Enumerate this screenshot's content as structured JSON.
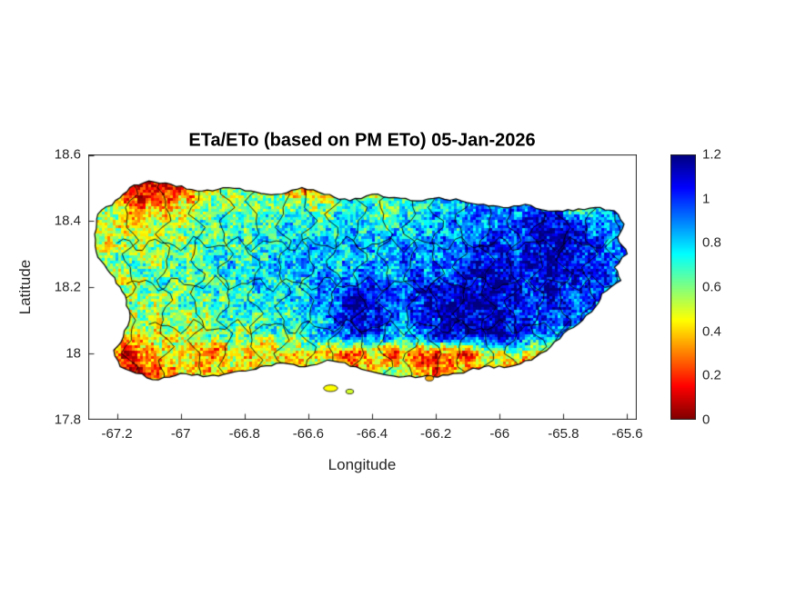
{
  "colors": {
    "axis": "#262626",
    "boundary": "#000000",
    "outline": "#000000",
    "background": "#ffffff",
    "text": "#262626"
  },
  "chart_data": {
    "type": "heatmap",
    "title": "ETa/ETo (based on PM ETo) 05-Jan-2026",
    "xlabel": "Longitude",
    "ylabel": "Latitude",
    "xlim": [
      -67.29,
      -65.57
    ],
    "ylim": [
      17.8,
      18.6
    ],
    "xticks": [
      -67.2,
      -67,
      -66.8,
      -66.6,
      -66.4,
      -66.2,
      -66,
      -65.8,
      -65.6
    ],
    "xtick_labels": [
      "-67.2",
      "-67",
      "-66.8",
      "-66.6",
      "-66.4",
      "-66.2",
      "-66",
      "-65.8",
      "-65.6"
    ],
    "yticks": [
      17.8,
      18,
      18.2,
      18.4,
      18.6
    ],
    "ytick_labels": [
      "17.8",
      "18",
      "18.2",
      "18.4",
      "18.6"
    ],
    "colorbar": {
      "min": 0,
      "max": 1.2,
      "ticks": [
        0,
        0.2,
        0.4,
        0.6,
        0.8,
        1,
        1.2
      ],
      "tick_labels": [
        "0",
        "0.2",
        "0.4",
        "0.6",
        "0.8",
        "1",
        "1.2"
      ],
      "colormap": "reversed-jet"
    },
    "grid_lon": {
      "start": -67.3,
      "step": 0.05,
      "n": 36
    },
    "grid_lat": {
      "start": 18.55,
      "step": -0.05,
      "n": 15
    },
    "values": [
      [
        0.5,
        0.4,
        0.3,
        0.1,
        0.1,
        0.15,
        0.2,
        0.35,
        0.5,
        0.55,
        0.5,
        0.55,
        0.6,
        0.25,
        0.3,
        0.55,
        0.6,
        0.7,
        0.25,
        0.6,
        0.65,
        0.7,
        0.75,
        0.7,
        0.75,
        0.7,
        0.75,
        0.7,
        0.75,
        0.8,
        0.75,
        0.7,
        0.6,
        0.7,
        0.75,
        0.8
      ],
      [
        0.5,
        0.4,
        0.3,
        0.1,
        0.1,
        0.15,
        0.2,
        0.35,
        0.5,
        0.55,
        0.5,
        0.55,
        0.6,
        0.25,
        0.3,
        0.55,
        0.6,
        0.7,
        0.25,
        0.6,
        0.65,
        0.7,
        0.75,
        0.7,
        0.75,
        0.7,
        0.75,
        0.7,
        0.75,
        0.8,
        0.75,
        0.7,
        0.6,
        0.7,
        0.75,
        0.8
      ],
      [
        0.6,
        0.55,
        0.5,
        0.2,
        0.25,
        0.35,
        0.45,
        0.5,
        0.55,
        0.6,
        0.6,
        0.65,
        0.6,
        0.65,
        0.6,
        0.55,
        0.7,
        0.75,
        0.7,
        0.6,
        0.7,
        0.75,
        0.8,
        0.75,
        0.8,
        0.85,
        0.8,
        0.85,
        0.9,
        0.85,
        0.8,
        0.3,
        0.8,
        0.85,
        0.9,
        0.85
      ],
      [
        0.55,
        0.5,
        0.55,
        0.45,
        0.5,
        0.45,
        0.55,
        0.6,
        0.65,
        0.7,
        0.65,
        0.7,
        0.75,
        0.7,
        0.75,
        0.7,
        0.75,
        0.8,
        0.75,
        0.7,
        0.75,
        0.8,
        0.85,
        0.9,
        0.85,
        0.9,
        0.95,
        1.0,
        1.05,
        1.1,
        1.05,
        1.0,
        0.9,
        0.85,
        0.9,
        0.9
      ],
      [
        0.5,
        0.55,
        0.5,
        0.55,
        0.5,
        0.6,
        0.55,
        0.65,
        0.7,
        0.65,
        0.7,
        0.75,
        0.7,
        0.75,
        0.8,
        0.75,
        0.8,
        0.75,
        0.8,
        0.85,
        0.8,
        0.85,
        0.9,
        0.85,
        0.9,
        1.0,
        1.05,
        1.0,
        1.1,
        1.15,
        1.1,
        1.05,
        0.95,
        0.9,
        0.95,
        0.9
      ],
      [
        0.55,
        0.5,
        0.6,
        0.55,
        0.6,
        0.55,
        0.65,
        0.6,
        0.7,
        0.75,
        0.7,
        0.75,
        0.8,
        0.75,
        0.8,
        0.85,
        0.8,
        0.85,
        0.8,
        0.85,
        0.9,
        0.85,
        0.9,
        0.95,
        1.0,
        1.1,
        1.05,
        1.0,
        1.1,
        1.15,
        1.15,
        1.1,
        1.0,
        0.95,
        0.9,
        0.95
      ],
      [
        0.5,
        0.6,
        0.55,
        0.6,
        0.65,
        0.6,
        0.65,
        0.7,
        0.65,
        0.75,
        0.8,
        0.75,
        0.8,
        0.85,
        0.8,
        0.85,
        0.8,
        0.85,
        0.9,
        0.85,
        0.9,
        0.95,
        0.9,
        1.0,
        1.05,
        1.1,
        1.0,
        1.05,
        1.1,
        1.15,
        1.1,
        1.05,
        1.0,
        0.95,
        0.9,
        0.9
      ],
      [
        0.55,
        0.5,
        0.6,
        0.55,
        0.6,
        0.65,
        0.6,
        0.65,
        0.7,
        0.75,
        0.7,
        0.8,
        0.75,
        0.8,
        0.85,
        0.9,
        0.85,
        0.95,
        1.0,
        0.95,
        0.9,
        1.0,
        1.05,
        1.0,
        1.1,
        1.05,
        1.1,
        1.05,
        1.0,
        1.1,
        1.05,
        1.0,
        0.95,
        0.9,
        0.85,
        0.9
      ],
      [
        0.5,
        0.55,
        0.5,
        0.6,
        0.55,
        0.6,
        0.65,
        0.6,
        0.7,
        0.65,
        0.75,
        0.7,
        0.75,
        0.8,
        0.85,
        0.9,
        1.0,
        1.1,
        1.05,
        1.0,
        0.95,
        1.05,
        1.1,
        1.05,
        1.1,
        1.15,
        1.1,
        1.05,
        1.0,
        1.05,
        1.0,
        0.95,
        0.9,
        0.85,
        0.8,
        0.85
      ],
      [
        0.45,
        0.5,
        0.55,
        0.5,
        0.55,
        0.6,
        0.55,
        0.65,
        0.6,
        0.7,
        0.65,
        0.7,
        0.75,
        0.7,
        0.8,
        0.85,
        1.05,
        1.15,
        1.1,
        1.0,
        0.9,
        1.0,
        1.05,
        1.1,
        1.05,
        1.1,
        1.15,
        1.1,
        1.0,
        0.95,
        1.0,
        0.9,
        0.85,
        0.8,
        0.75,
        0.8
      ],
      [
        0.4,
        0.45,
        0.5,
        0.45,
        0.5,
        0.55,
        0.5,
        0.55,
        0.6,
        0.55,
        0.65,
        0.6,
        0.65,
        0.6,
        0.7,
        0.75,
        0.9,
        1.0,
        0.95,
        0.85,
        0.8,
        0.9,
        1.0,
        1.05,
        1.0,
        1.05,
        1.1,
        1.0,
        0.9,
        0.85,
        0.9,
        0.8,
        0.75,
        0.7,
        0.75,
        0.7
      ],
      [
        0.3,
        0.25,
        0.2,
        0.15,
        0.35,
        0.4,
        0.45,
        0.35,
        0.2,
        0.4,
        0.45,
        0.4,
        0.45,
        0.5,
        0.45,
        0.5,
        0.35,
        0.15,
        0.4,
        0.25,
        0.3,
        0.2,
        0.15,
        0.3,
        0.25,
        0.4,
        0.5,
        0.55,
        0.5,
        0.45,
        0.6,
        0.7,
        0.75,
        0.7,
        0.75,
        0.7
      ],
      [
        0.35,
        0.3,
        0.15,
        0.1,
        0.3,
        0.35,
        0.4,
        0.45,
        0.4,
        0.45,
        0.5,
        0.45,
        0.5,
        0.45,
        0.5,
        0.55,
        0.5,
        0.35,
        0.45,
        0.5,
        0.45,
        0.3,
        0.25,
        0.35,
        0.4,
        0.45,
        0.5,
        0.3,
        0.25,
        0.4,
        0.55,
        0.6,
        0.65,
        0.7,
        0.65,
        0.7
      ],
      [
        0.4,
        0.35,
        0.2,
        0.15,
        0.35,
        0.4,
        0.45,
        0.4,
        0.45,
        0.5,
        0.45,
        0.5,
        0.55,
        0.5,
        0.55,
        0.5,
        0.55,
        0.45,
        0.5,
        0.55,
        0.5,
        0.4,
        0.35,
        0.45,
        0.5,
        0.55,
        0.5,
        0.45,
        0.4,
        0.5,
        0.55,
        0.6,
        0.65,
        0.6,
        0.65,
        0.7
      ],
      [
        0.4,
        0.35,
        0.2,
        0.15,
        0.35,
        0.4,
        0.45,
        0.4,
        0.45,
        0.5,
        0.45,
        0.5,
        0.55,
        0.5,
        0.55,
        0.5,
        0.55,
        0.45,
        0.5,
        0.55,
        0.5,
        0.4,
        0.35,
        0.45,
        0.5,
        0.55,
        0.5,
        0.45,
        0.4,
        0.5,
        0.55,
        0.6,
        0.65,
        0.6,
        0.65,
        0.7
      ]
    ],
    "island_outline": [
      [
        -67.27,
        18.36
      ],
      [
        -67.26,
        18.42
      ],
      [
        -67.19,
        18.47
      ],
      [
        -67.16,
        18.5
      ],
      [
        -67.1,
        18.52
      ],
      [
        -67.03,
        18.51
      ],
      [
        -66.95,
        18.49
      ],
      [
        -66.9,
        18.49
      ],
      [
        -66.85,
        18.5
      ],
      [
        -66.78,
        18.49
      ],
      [
        -66.7,
        18.48
      ],
      [
        -66.62,
        18.5
      ],
      [
        -66.55,
        18.48
      ],
      [
        -66.47,
        18.46
      ],
      [
        -66.4,
        18.48
      ],
      [
        -66.33,
        18.47
      ],
      [
        -66.26,
        18.46
      ],
      [
        -66.19,
        18.47
      ],
      [
        -66.12,
        18.46
      ],
      [
        -66.05,
        18.45
      ],
      [
        -65.99,
        18.44
      ],
      [
        -65.92,
        18.45
      ],
      [
        -65.85,
        18.43
      ],
      [
        -65.77,
        18.43
      ],
      [
        -65.7,
        18.44
      ],
      [
        -65.64,
        18.43
      ],
      [
        -65.61,
        18.39
      ],
      [
        -65.63,
        18.35
      ],
      [
        -65.6,
        18.3
      ],
      [
        -65.64,
        18.26
      ],
      [
        -65.62,
        18.22
      ],
      [
        -65.68,
        18.18
      ],
      [
        -65.7,
        18.14
      ],
      [
        -65.74,
        18.1
      ],
      [
        -65.8,
        18.06
      ],
      [
        -65.84,
        18.02
      ],
      [
        -65.9,
        17.98
      ],
      [
        -65.97,
        17.96
      ],
      [
        -66.05,
        17.96
      ],
      [
        -66.13,
        17.94
      ],
      [
        -66.21,
        17.93
      ],
      [
        -66.3,
        17.93
      ],
      [
        -66.38,
        17.94
      ],
      [
        -66.45,
        17.96
      ],
      [
        -66.54,
        17.98
      ],
      [
        -66.61,
        17.96
      ],
      [
        -66.7,
        17.97
      ],
      [
        -66.78,
        17.95
      ],
      [
        -66.85,
        17.94
      ],
      [
        -66.93,
        17.93
      ],
      [
        -67.0,
        17.94
      ],
      [
        -67.07,
        17.92
      ],
      [
        -67.14,
        17.94
      ],
      [
        -67.19,
        17.96
      ],
      [
        -67.21,
        18.01
      ],
      [
        -67.18,
        18.05
      ],
      [
        -67.16,
        18.1
      ],
      [
        -67.17,
        18.16
      ],
      [
        -67.19,
        18.2
      ],
      [
        -67.22,
        18.24
      ],
      [
        -67.26,
        18.29
      ]
    ],
    "islets": [
      {
        "lon": -66.53,
        "lat": 17.895,
        "rx": 0.022,
        "ry": 0.01,
        "value": 0.45
      },
      {
        "lon": -66.47,
        "lat": 17.885,
        "rx": 0.012,
        "ry": 0.007,
        "value": 0.5
      },
      {
        "lon": -66.22,
        "lat": 17.925,
        "rx": 0.013,
        "ry": 0.008,
        "value": 0.35
      }
    ],
    "boundary_lons": [
      -67.16,
      -67.05,
      -66.95,
      -66.86,
      -66.77,
      -66.68,
      -66.6,
      -66.52,
      -66.44,
      -66.36,
      -66.28,
      -66.2,
      -66.12,
      -66.04,
      -65.96,
      -65.88,
      -65.8,
      -65.72,
      -65.64
    ],
    "boundary_lats": [
      {
        "lat": 18.33,
        "lon_range": [
          -67.2,
          -65.66
        ]
      },
      {
        "lat": 18.21,
        "lon_range": [
          -67.17,
          -65.64
        ]
      },
      {
        "lat": 18.08,
        "lon_range": [
          -67.1,
          -65.78
        ]
      }
    ]
  }
}
